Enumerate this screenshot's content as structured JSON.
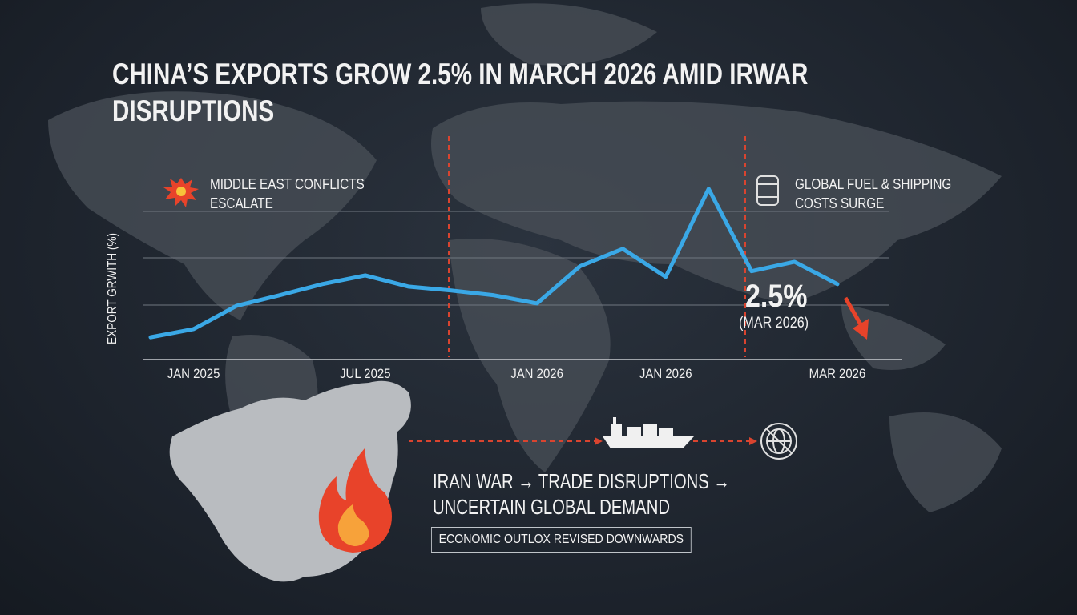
{
  "chart_data": {
    "type": "line",
    "title": "CHINA’S EXPORTS GROW 2.5% IN MARCH 2026 AMID IRWAR DISRUPTIONS",
    "y_label": "EXPORT GRWITH (%)",
    "categories": [
      null,
      "JAN 2025",
      null,
      null,
      null,
      "JUL 2025",
      null,
      null,
      null,
      "JAN 2026",
      null,
      null,
      "JAN 2026",
      null,
      null,
      null,
      "MAR 2026"
    ],
    "series": [
      {
        "color": "#3aa8e6",
        "values": [
          0.74,
          1.01,
          1.78,
          2.13,
          2.5,
          2.79,
          2.42,
          2.29,
          2.13,
          1.86,
          3.09,
          3.67,
          2.74,
          5.66,
          2.93,
          3.24,
          2.5
        ],
        "value_labels": [
          null,
          null,
          null,
          null,
          null,
          null,
          null,
          null,
          null,
          null,
          null,
          null,
          null,
          null,
          null,
          null,
          "2.5%"
        ]
      }
    ],
    "ylim": [
      0,
      6
    ],
    "annotations": {
      "conflict": "MIDDLE EAST CONFLICTS ESCALATE",
      "fuel": "GLOBAL FUEL & SHIPPING COSTS SURGE",
      "value_date": "(MAR 2026)",
      "flow": "IRAN WAR → TRADE DISRUPTIONS → UNCERTAIN GLOBAL DEMAND",
      "outlook": "ECONOMIC OUTLOX REVISED DOWNWARDS"
    }
  }
}
